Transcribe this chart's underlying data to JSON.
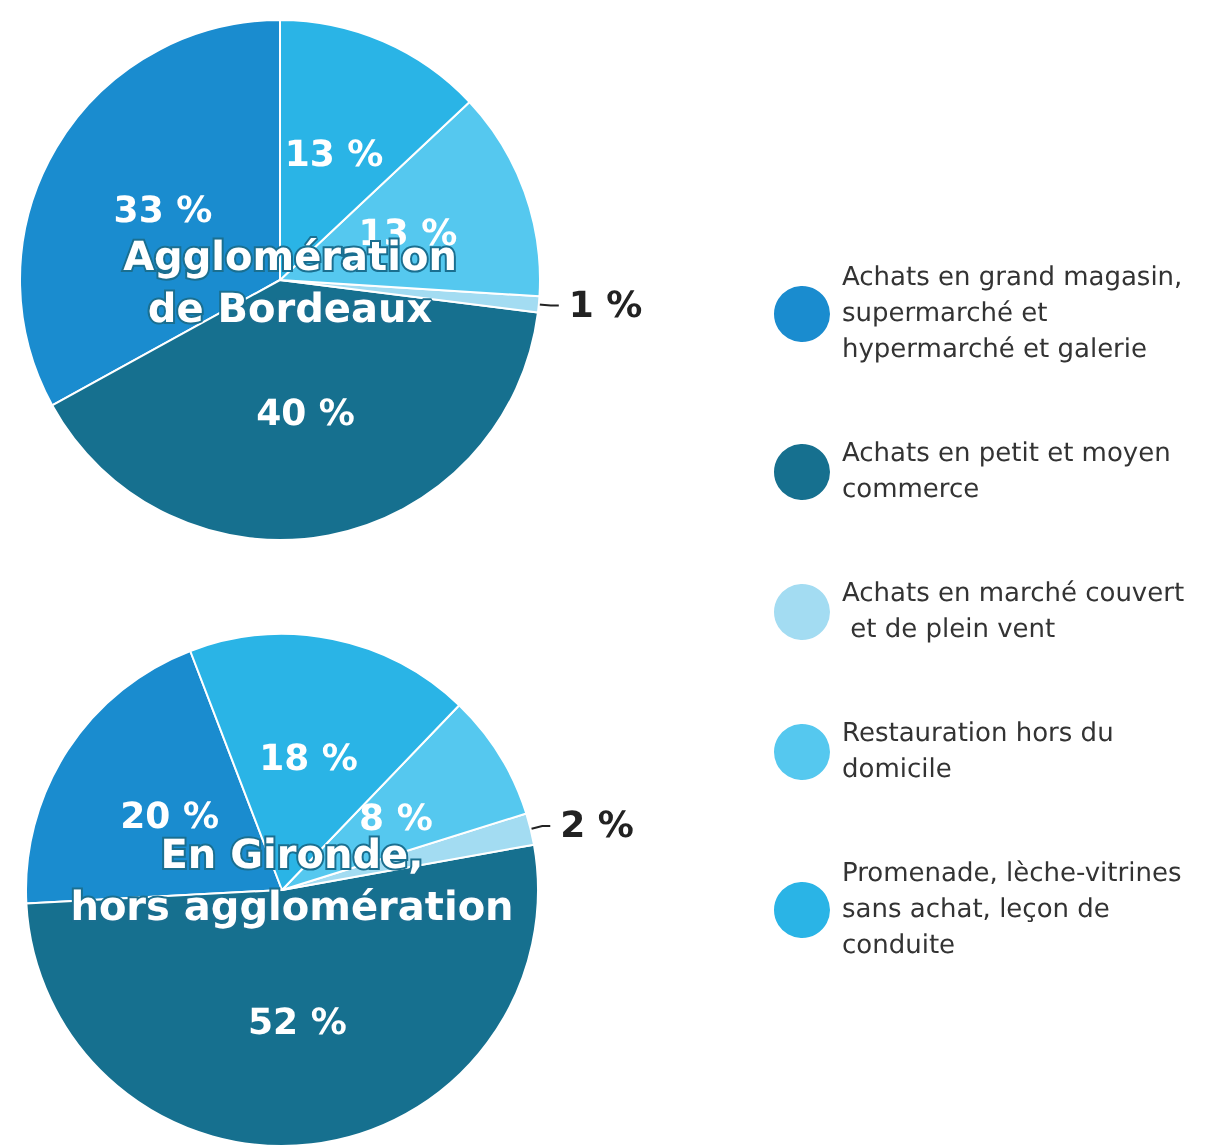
{
  "chart_data": [
    {
      "type": "pie",
      "title": "Agglomération\nde Bordeaux",
      "categories": [
        "Achats en grand magasin, supermarché et hypermarché et galerie",
        "Achats en petit et moyen commerce",
        "Achats en marché couvert et de plein vent",
        "Restauration hors du domicile",
        "Promenade, lèche-vitrines sans achat, leçon de conduite"
      ],
      "values": [
        33,
        40,
        1,
        13,
        13
      ],
      "value_labels": [
        "33 %",
        "40 %",
        "1 %",
        "13 %",
        "13 %"
      ],
      "colors": [
        "#1a8ccf",
        "#16708f",
        "#a3dcf2",
        "#55c8ef",
        "#2ab4e6"
      ],
      "legend": "right"
    },
    {
      "type": "pie",
      "title": "En Gironde,\nhors agglomération",
      "categories": [
        null,
        null,
        null,
        null,
        null
      ],
      "values": [
        20,
        52,
        2,
        8,
        18
      ],
      "value_labels": [
        "20 %",
        "52 %",
        "2 %",
        "8 %",
        "18 %"
      ],
      "colors": [
        "#1a8ccf",
        "#16708f",
        "#a3dcf2",
        "#55c8ef",
        "#2ab4e6"
      ]
    }
  ]
}
